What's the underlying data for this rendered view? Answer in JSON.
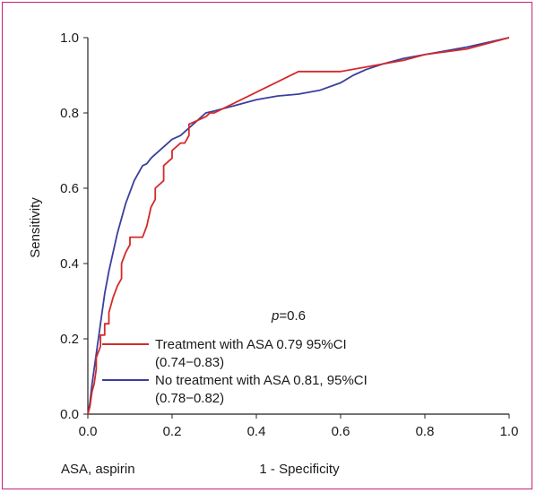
{
  "chart_data": {
    "type": "line",
    "title": "",
    "xlabel": "1 - Specificity",
    "ylabel": "Sensitivity",
    "xlim": [
      0.0,
      1.0
    ],
    "ylim": [
      0.0,
      1.0
    ],
    "x_ticks": [
      "0.0",
      "0.2",
      "0.4",
      "0.6",
      "0.8",
      "1.0"
    ],
    "y_ticks": [
      "0.0",
      "0.2",
      "0.4",
      "0.6",
      "0.8",
      "1.0"
    ],
    "grid": false,
    "legend_position": "bottom-left",
    "annotation_p": "p",
    "annotation_value": "=0.6",
    "footnote": "ASA, aspirin",
    "colors": {
      "treatment": "#d42a2a",
      "no_treatment": "#3a3f9c",
      "frame": "#c8207a"
    },
    "series": [
      {
        "name": "Treatment with ASA",
        "legend_line1": "Treatment with ASA  0.79 95%CI",
        "legend_line2": "(0.74−0.83)",
        "x": [
          0.0,
          0.005,
          0.01,
          0.015,
          0.02,
          0.02,
          0.03,
          0.03,
          0.04,
          0.04,
          0.05,
          0.05,
          0.06,
          0.07,
          0.08,
          0.08,
          0.09,
          0.1,
          0.1,
          0.13,
          0.14,
          0.15,
          0.16,
          0.16,
          0.18,
          0.18,
          0.2,
          0.2,
          0.22,
          0.23,
          0.24,
          0.24,
          0.26,
          0.28,
          0.29,
          0.3,
          0.5,
          0.55,
          0.6,
          0.65,
          0.7,
          0.75,
          0.8,
          0.9,
          1.0
        ],
        "y": [
          0.0,
          0.02,
          0.06,
          0.08,
          0.12,
          0.15,
          0.18,
          0.21,
          0.21,
          0.24,
          0.24,
          0.27,
          0.31,
          0.34,
          0.36,
          0.4,
          0.43,
          0.45,
          0.47,
          0.47,
          0.5,
          0.55,
          0.57,
          0.6,
          0.62,
          0.66,
          0.68,
          0.7,
          0.72,
          0.72,
          0.74,
          0.77,
          0.78,
          0.79,
          0.8,
          0.8,
          0.91,
          0.91,
          0.91,
          0.92,
          0.93,
          0.94,
          0.955,
          0.97,
          1.0
        ]
      },
      {
        "name": "No treatment with ASA",
        "legend_line1": "No treatment with ASA  0.81, 95%CI",
        "legend_line2": "(0.78−0.82)",
        "x": [
          0.0,
          0.005,
          0.01,
          0.02,
          0.03,
          0.04,
          0.05,
          0.06,
          0.07,
          0.08,
          0.09,
          0.1,
          0.11,
          0.12,
          0.13,
          0.14,
          0.15,
          0.16,
          0.18,
          0.2,
          0.22,
          0.24,
          0.26,
          0.28,
          0.3,
          0.35,
          0.4,
          0.45,
          0.5,
          0.55,
          0.6,
          0.63,
          0.66,
          0.7,
          0.75,
          0.8,
          0.9,
          1.0
        ],
        "y": [
          0.0,
          0.03,
          0.08,
          0.16,
          0.24,
          0.32,
          0.38,
          0.43,
          0.48,
          0.52,
          0.56,
          0.59,
          0.62,
          0.64,
          0.66,
          0.665,
          0.68,
          0.69,
          0.71,
          0.73,
          0.74,
          0.76,
          0.78,
          0.8,
          0.805,
          0.82,
          0.835,
          0.845,
          0.85,
          0.86,
          0.88,
          0.9,
          0.915,
          0.93,
          0.945,
          0.955,
          0.975,
          1.0
        ]
      }
    ]
  }
}
